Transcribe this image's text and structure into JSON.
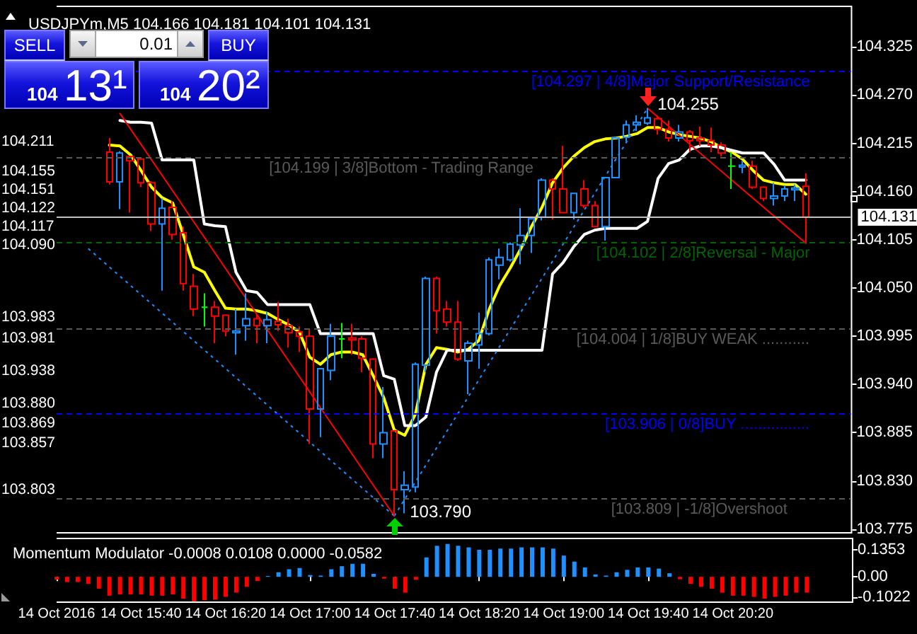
{
  "chart_data": [
    {
      "type": "candlestick",
      "title": "USDJPYm,M5 104.166 104.181 104.101 104.131",
      "x": [
        "2016-10-14T15:25",
        "2016-10-14T15:30",
        "2016-10-14T15:35",
        "2016-10-14T15:40",
        "2016-10-14T15:45",
        "2016-10-14T15:50",
        "2016-10-14T15:55",
        "2016-10-14T16:00",
        "2016-10-14T16:05",
        "2016-10-14T16:10",
        "2016-10-14T16:15",
        "2016-10-14T16:20",
        "2016-10-14T16:25",
        "2016-10-14T16:30",
        "2016-10-14T16:35",
        "2016-10-14T16:40",
        "2016-10-14T16:45",
        "2016-10-14T16:50",
        "2016-10-14T16:55",
        "2016-10-14T17:00",
        "2016-10-14T17:05",
        "2016-10-14T17:10",
        "2016-10-14T17:15",
        "2016-10-14T17:20",
        "2016-10-14T17:25",
        "2016-10-14T17:30",
        "2016-10-14T17:35",
        "2016-10-14T17:40",
        "2016-10-14T17:45",
        "2016-10-14T17:50",
        "2016-10-14T17:55",
        "2016-10-14T18:00",
        "2016-10-14T18:05",
        "2016-10-14T18:10",
        "2016-10-14T18:15",
        "2016-10-14T18:20",
        "2016-10-14T18:25",
        "2016-10-14T18:30",
        "2016-10-14T18:35",
        "2016-10-14T18:40",
        "2016-10-14T18:45",
        "2016-10-14T18:50",
        "2016-10-14T18:55",
        "2016-10-14T19:00",
        "2016-10-14T19:05",
        "2016-10-14T19:10",
        "2016-10-14T19:15",
        "2016-10-14T19:20",
        "2016-10-14T19:25",
        "2016-10-14T19:30",
        "2016-10-14T19:35",
        "2016-10-14T19:40",
        "2016-10-14T19:45",
        "2016-10-14T19:50",
        "2016-10-14T19:55",
        "2016-10-14T20:00",
        "2016-10-14T20:05",
        "2016-10-14T20:10",
        "2016-10-14T20:15",
        "2016-10-14T20:20",
        "2016-10-14T20:25",
        "2016-10-14T20:30",
        "2016-10-14T20:35",
        "2016-10-14T20:40",
        "2016-10-14T20:45",
        "2016-10-14T20:50",
        "2016-10-14T20:55"
      ],
      "ohlc": [
        [
          104.205,
          104.221,
          104.168,
          104.171
        ],
        [
          104.171,
          104.206,
          104.14,
          104.204
        ],
        [
          104.2,
          104.201,
          104.136,
          104.195
        ],
        [
          104.197,
          104.198,
          104.165,
          104.17
        ],
        [
          104.17,
          104.172,
          104.115,
          104.123
        ],
        [
          104.123,
          104.152,
          104.047,
          104.141
        ],
        [
          104.142,
          104.149,
          104.105,
          104.111
        ],
        [
          104.113,
          104.12,
          104.047,
          104.055
        ],
        [
          104.052,
          104.066,
          104.018,
          104.026
        ],
        [
          104.028,
          104.044,
          104.006,
          104.028
        ],
        [
          104.028,
          104.035,
          103.987,
          104.018
        ],
        [
          104.019,
          104.02,
          103.995,
          104.001
        ],
        [
          103.999,
          104.026,
          103.974,
          104.001
        ],
        [
          104.007,
          104.044,
          103.99,
          104.015
        ],
        [
          104.015,
          104.02,
          103.987,
          104.007
        ],
        [
          104.007,
          104.023,
          103.987,
          104.014
        ],
        [
          104.012,
          104.034,
          104.001,
          104.008
        ],
        [
          104.007,
          104.015,
          103.982,
          103.999
        ],
        [
          104.0,
          104.006,
          103.977,
          103.995
        ],
        [
          103.995,
          104.003,
          103.872,
          103.912
        ],
        [
          103.912,
          103.958,
          103.88,
          103.958
        ],
        [
          103.956,
          104.009,
          103.945,
          103.995
        ],
        [
          103.992,
          104.01,
          103.97,
          103.992
        ],
        [
          103.993,
          104.009,
          103.974,
          103.991
        ],
        [
          103.992,
          103.995,
          103.954,
          103.97
        ],
        [
          103.969,
          103.97,
          103.856,
          103.872
        ],
        [
          103.872,
          103.937,
          103.856,
          103.885
        ],
        [
          103.887,
          103.888,
          103.79,
          103.82
        ],
        [
          103.82,
          103.841,
          103.793,
          103.825
        ],
        [
          103.823,
          103.965,
          103.817,
          103.963
        ],
        [
          103.962,
          104.063,
          103.954,
          104.061
        ],
        [
          104.061,
          104.063,
          103.998,
          104.024
        ],
        [
          104.026,
          104.035,
          104.006,
          104.011
        ],
        [
          104.011,
          104.035,
          103.967,
          103.969
        ],
        [
          103.967,
          103.99,
          103.929,
          103.987
        ],
        [
          103.985,
          104.022,
          103.958,
          103.998
        ],
        [
          103.998,
          104.085,
          103.996,
          104.082
        ],
        [
          104.076,
          104.095,
          104.06,
          104.085
        ],
        [
          104.082,
          104.102,
          104.08,
          104.1
        ],
        [
          104.099,
          104.141,
          104.077,
          104.11
        ],
        [
          104.11,
          104.129,
          104.09,
          104.129
        ],
        [
          104.131,
          104.175,
          104.127,
          104.173
        ],
        [
          104.173,
          104.175,
          104.128,
          104.163
        ],
        [
          104.163,
          104.212,
          104.136,
          104.136
        ],
        [
          104.136,
          104.158,
          104.128,
          104.158
        ],
        [
          104.163,
          104.173,
          104.141,
          104.144
        ],
        [
          104.144,
          104.149,
          104.12,
          104.12
        ],
        [
          104.12,
          104.176,
          104.104,
          104.176
        ],
        [
          104.176,
          104.223,
          104.176,
          104.221
        ],
        [
          104.222,
          104.241,
          104.217,
          104.236
        ],
        [
          104.236,
          104.247,
          104.229,
          104.239
        ],
        [
          104.238,
          104.255,
          104.236,
          104.244
        ],
        [
          104.243,
          104.247,
          104.225,
          104.231
        ],
        [
          104.231,
          104.241,
          104.217,
          104.221
        ],
        [
          104.221,
          104.236,
          104.217,
          104.228
        ],
        [
          104.228,
          104.23,
          104.205,
          104.218
        ],
        [
          104.221,
          104.234,
          104.212,
          104.218
        ],
        [
          104.218,
          104.233,
          104.205,
          104.213
        ],
        [
          104.213,
          104.216,
          104.2,
          104.204
        ],
        [
          104.189,
          104.205,
          104.163,
          104.189
        ],
        [
          104.188,
          104.195,
          104.181,
          104.19
        ],
        [
          104.189,
          104.195,
          104.163,
          104.165
        ],
        [
          104.165,
          104.166,
          104.149,
          104.152
        ],
        [
          104.152,
          104.17,
          104.144,
          104.155
        ],
        [
          104.155,
          104.167,
          104.149,
          104.163
        ],
        [
          104.162,
          104.168,
          104.149,
          104.164
        ],
        [
          104.166,
          104.181,
          104.101,
          104.131
        ]
      ],
      "colors": [
        "#ff0000",
        "#1e90ff",
        "#ff0000",
        "#ff0000",
        "#ff0000",
        "#1e90ff",
        "#ff0000",
        "#ff0000",
        "#ff0000",
        "#00ff00",
        "#ff0000",
        "#ff0000",
        "#1e90ff",
        "#1e90ff",
        "#ff0000",
        "#1e90ff",
        "#ff0000",
        "#ff0000",
        "#ff0000",
        "#ff0000",
        "#1e90ff",
        "#1e90ff",
        "#00ff00",
        "#ff0000",
        "#ff0000",
        "#ff0000",
        "#1e90ff",
        "#ff0000",
        "#1e90ff",
        "#1e90ff",
        "#1e90ff",
        "#ff0000",
        "#ff0000",
        "#ff0000",
        "#1e90ff",
        "#1e90ff",
        "#1e90ff",
        "#1e90ff",
        "#1e90ff",
        "#1e90ff",
        "#1e90ff",
        "#1e90ff",
        "#ff0000",
        "#ff0000",
        "#1e90ff",
        "#ff0000",
        "#ff0000",
        "#1e90ff",
        "#1e90ff",
        "#1e90ff",
        "#1e90ff",
        "#1e90ff",
        "#ff0000",
        "#ff0000",
        "#1e90ff",
        "#ff0000",
        "#ff0000",
        "#ff0000",
        "#ff0000",
        "#00ff00",
        "#1e90ff",
        "#ff0000",
        "#ff0000",
        "#1e90ff",
        "#1e90ff",
        "#1e90ff",
        "#ff0000"
      ],
      "series": [
        {
          "type": "line",
          "color": "#ffff00",
          "values": [
            104.213,
            104.212,
            104.202,
            104.184,
            104.165,
            104.153,
            104.147,
            104.111,
            104.074,
            104.068,
            104.047,
            104.027,
            104.026,
            104.026,
            104.024,
            104.021,
            104.014,
            104.008,
            104.0,
            103.971,
            103.963,
            103.974,
            103.977,
            103.977,
            103.974,
            103.95,
            103.925,
            103.888,
            103.882,
            103.906,
            103.963,
            103.982,
            103.98,
            103.977,
            103.98,
            103.99,
            104.026,
            104.053,
            104.073,
            104.095,
            104.12,
            104.142,
            104.17,
            104.187,
            104.2,
            104.21,
            104.217,
            104.22,
            104.221,
            104.223,
            104.226,
            104.233,
            104.233,
            104.228,
            104.225,
            104.223,
            104.221,
            104.217,
            104.21,
            104.205,
            104.197,
            104.184,
            104.173,
            104.17,
            104.168,
            104.168,
            104.157
          ]
        },
        {
          "type": "line",
          "color": "#ffffff",
          "values": [
            null,
            104.241,
            104.239,
            104.239,
            104.238,
            104.196,
            104.196,
            104.196,
            104.196,
            104.123,
            104.121,
            104.12,
            104.068,
            104.047,
            104.045,
            104.031,
            104.031,
            104.031,
            104.031,
            104.031,
            103.998,
            103.998,
            103.998,
            103.998,
            103.998,
            103.998,
            103.95,
            103.946,
            103.893,
            103.893,
            103.903,
            103.954,
            103.979,
            103.979,
            103.979,
            103.979,
            103.979,
            103.979,
            103.979,
            103.979,
            103.979,
            103.979,
            104.066,
            104.079,
            104.097,
            104.111,
            104.116,
            104.118,
            104.118,
            104.118,
            104.118,
            104.126,
            104.175,
            104.192,
            104.196,
            104.208,
            104.212,
            104.212,
            104.21,
            104.207,
            104.204,
            104.204,
            104.204,
            104.191,
            104.173,
            104.173,
            104.173
          ]
        },
        {
          "type": "line",
          "color": "#ff0000",
          "x": [
            "2016-10-14T15:30",
            "2016-10-14T17:40"
          ],
          "values": [
            104.249,
            103.79
          ]
        },
        {
          "type": "line",
          "color": "#ff0000",
          "x": [
            "2016-10-14T19:40",
            "2016-10-14T20:55"
          ],
          "values": [
            104.255,
            104.101
          ]
        },
        {
          "type": "line",
          "color": "#1e90ff",
          "line_style": "dotted",
          "x": [
            "2016-10-14T15:15",
            "2016-10-14T17:40"
          ],
          "values": [
            104.095,
            103.79
          ]
        },
        {
          "type": "line",
          "color": "#1e90ff",
          "line_style": "dotted",
          "x": [
            "2016-10-14T17:40",
            "2016-10-14T19:40"
          ],
          "values": [
            103.79,
            104.255
          ]
        }
      ],
      "xlim": [
        "2016-10-14T15:00",
        "2016-10-14T21:17"
      ],
      "ylim": [
        103.77,
        104.372
      ],
      "yticks": [
        104.325,
        {
          "value": 104.27,
          "label": "104.270"
        },
        104.215,
        {
          "value": 104.16,
          "label": "104.160"
        },
        104.105,
        {
          "value": 104.05,
          "label": "104.050"
        },
        103.995,
        {
          "value": 103.94,
          "label": "103.940"
        },
        103.885,
        {
          "value": 103.83,
          "label": "103.830"
        },
        103.775
      ],
      "tick_labels": "y",
      "ref_lines": [
        {
          "axis": "y",
          "value": 104.297,
          "label": "[104.297 | 4/8]Major Support/Resistance",
          "color": "#0000ff",
          "line_style": "dashed"
        },
        {
          "axis": "y",
          "value": 104.199,
          "label": "[104.199 | 3/8]Bottom - Trading Range",
          "color": "#5a5a5a",
          "line_style": "dashed"
        },
        {
          "axis": "y",
          "value": 104.102,
          "label": "[104.102 | 2/8]Reversal - Major",
          "color": "#006400",
          "line_style": "dashed"
        },
        {
          "axis": "y",
          "value": 104.004,
          "label": "[104.004 | 1/8]BUY WEAK ...........",
          "color": "#5a5a5a",
          "line_style": "dashed"
        },
        {
          "axis": "y",
          "value": 103.906,
          "label": "[103.906 | 0/8]BUY ................",
          "color": "#0000ff",
          "line_style": "dashed"
        },
        {
          "axis": "y",
          "value": 103.809,
          "label": "[103.809 | -1/8]Overshoot",
          "color": "#5a5a5a",
          "line_style": "dashed"
        },
        {
          "axis": "y",
          "value": 104.131,
          "label": "104.131",
          "color": "#c0c0c0",
          "line_style": "solid"
        }
      ],
      "annotations": [
        "SELL",
        "0.01",
        "BUY",
        "104",
        "13¹",
        "104",
        "20²",
        "104.211",
        "104.155",
        "104.151",
        "104.122",
        "104.117",
        "104.090",
        "103.983",
        "103.981",
        "103.938",
        "103.880",
        "103.869",
        "103.857",
        "103.803",
        {
          "text": "104.255",
          "x": "2016-10-14T19:40",
          "y": 104.255
        },
        {
          "text": "103.790",
          "x": "2016-10-14T17:40",
          "y": 103.79
        }
      ]
    },
    {
      "type": "bar",
      "title": "Momentum Modulator -0.0008 0.0108 0.0000 -0.0582",
      "x": [
        "2016-10-14T15:00",
        "2016-10-14T15:05",
        "2016-10-14T15:10",
        "2016-10-14T15:15",
        "2016-10-14T15:20",
        "2016-10-14T15:25",
        "2016-10-14T15:30",
        "2016-10-14T15:35",
        "2016-10-14T15:40",
        "2016-10-14T15:45",
        "2016-10-14T15:50",
        "2016-10-14T15:55",
        "2016-10-14T16:00",
        "2016-10-14T16:05",
        "2016-10-14T16:10",
        "2016-10-14T16:15",
        "2016-10-14T16:20",
        "2016-10-14T16:25",
        "2016-10-14T16:30",
        "2016-10-14T16:35",
        "2016-10-14T16:40",
        "2016-10-14T16:45",
        "2016-10-14T16:50",
        "2016-10-14T16:55",
        "2016-10-14T17:00",
        "2016-10-14T17:05",
        "2016-10-14T17:10",
        "2016-10-14T17:15",
        "2016-10-14T17:20",
        "2016-10-14T17:25",
        "2016-10-14T17:30",
        "2016-10-14T17:35",
        "2016-10-14T17:40",
        "2016-10-14T17:45",
        "2016-10-14T17:50",
        "2016-10-14T17:55",
        "2016-10-14T18:00",
        "2016-10-14T18:05",
        "2016-10-14T18:10",
        "2016-10-14T18:15",
        "2016-10-14T18:20",
        "2016-10-14T18:25",
        "2016-10-14T18:30",
        "2016-10-14T18:35",
        "2016-10-14T18:40",
        "2016-10-14T18:45",
        "2016-10-14T18:50",
        "2016-10-14T18:55",
        "2016-10-14T19:00",
        "2016-10-14T19:05",
        "2016-10-14T19:10",
        "2016-10-14T19:15",
        "2016-10-14T19:20",
        "2016-10-14T19:25",
        "2016-10-14T19:30",
        "2016-10-14T19:35",
        "2016-10-14T19:40",
        "2016-10-14T19:45",
        "2016-10-14T19:50",
        "2016-10-14T19:55",
        "2016-10-14T20:00",
        "2016-10-14T20:05",
        "2016-10-14T20:10",
        "2016-10-14T20:15",
        "2016-10-14T20:20",
        "2016-10-14T20:25",
        "2016-10-14T20:30",
        "2016-10-14T20:35",
        "2016-10-14T20:40",
        "2016-10-14T20:45",
        "2016-10-14T20:50",
        "2016-10-14T20:55"
      ],
      "values": [
        -0.014,
        -0.026,
        -0.026,
        -0.035,
        -0.059,
        -0.094,
        -0.088,
        -0.088,
        -0.088,
        -0.094,
        -0.094,
        -0.088,
        -0.109,
        -0.123,
        -0.117,
        -0.114,
        -0.1,
        -0.079,
        -0.05,
        -0.021,
        0.004,
        0.023,
        0.038,
        0.044,
        0.009,
        0.006,
        0.038,
        0.053,
        0.065,
        0.065,
        0.015,
        -0.009,
        -0.059,
        -0.079,
        -0.015,
        0.097,
        0.155,
        0.164,
        0.155,
        0.147,
        0.135,
        0.135,
        0.141,
        0.141,
        0.147,
        0.147,
        0.147,
        0.141,
        0.106,
        0.076,
        0.047,
        0.012,
        0.006,
        0.023,
        0.035,
        0.047,
        0.047,
        0.041,
        0.018,
        -0.012,
        -0.035,
        -0.05,
        -0.059,
        -0.079,
        -0.094,
        -0.094,
        -0.1,
        -0.109,
        -0.1,
        -0.094,
        -0.079,
        -0.079
      ],
      "colors": [
        "#ff0000",
        "#ff0000",
        "#ff0000",
        "#ff0000",
        "#ff0000",
        "#ff0000",
        "#ff0000",
        "#ff0000",
        "#ff0000",
        "#ff0000",
        "#ff0000",
        "#ff0000",
        "#ff0000",
        "#ff0000",
        "#ff0000",
        "#ff0000",
        "#ff0000",
        "#ff0000",
        "#ff0000",
        "#ff0000",
        "#1e90ff",
        "#1e90ff",
        "#1e90ff",
        "#1e90ff",
        "#1e90ff",
        "#1e90ff",
        "#1e90ff",
        "#1e90ff",
        "#1e90ff",
        "#1e90ff",
        "#1e90ff",
        "#ff0000",
        "#ff0000",
        "#ff0000",
        "#ff0000",
        "#1e90ff",
        "#1e90ff",
        "#1e90ff",
        "#1e90ff",
        "#1e90ff",
        "#1e90ff",
        "#1e90ff",
        "#1e90ff",
        "#1e90ff",
        "#1e90ff",
        "#1e90ff",
        "#1e90ff",
        "#1e90ff",
        "#1e90ff",
        "#1e90ff",
        "#1e90ff",
        "#1e90ff",
        "#1e90ff",
        "#1e90ff",
        "#1e90ff",
        "#1e90ff",
        "#1e90ff",
        "#1e90ff",
        "#1e90ff",
        "#ff0000",
        "#ff0000",
        "#ff0000",
        "#ff0000",
        "#ff0000",
        "#ff0000",
        "#ff0000",
        "#ff0000",
        "#ff0000",
        "#ff0000",
        "#ff0000",
        "#ff0000",
        "#ff0000"
      ],
      "xlim": [
        "2016-10-14T15:00",
        "2016-10-14T21:17"
      ],
      "xticks": [
        {
          "value": "2016-10-14T15:00",
          "label": "14 Oct 2016"
        },
        {
          "value": "2016-10-14T15:40",
          "label": "14 Oct 15:40"
        },
        {
          "value": "2016-10-14T16:20",
          "label": "14 Oct 16:20"
        },
        {
          "value": "2016-10-14T17:00",
          "label": "14 Oct 17:00"
        },
        {
          "value": "2016-10-14T17:40",
          "label": "14 Oct 17:40"
        },
        {
          "value": "2016-10-14T18:20",
          "label": "14 Oct 18:20"
        },
        {
          "value": "2016-10-14T19:00",
          "label": "14 Oct 19:00"
        },
        {
          "value": "2016-10-14T19:40",
          "label": "14 Oct 19:40"
        },
        {
          "value": "2016-10-14T20:20",
          "label": "14 Oct 20:20"
        }
      ],
      "ylim": [
        -0.13,
        0.195
      ],
      "yticks": [
        -0.1022,
        {
          "value": 0,
          "label": "0.00"
        },
        0.1353
      ]
    }
  ]
}
